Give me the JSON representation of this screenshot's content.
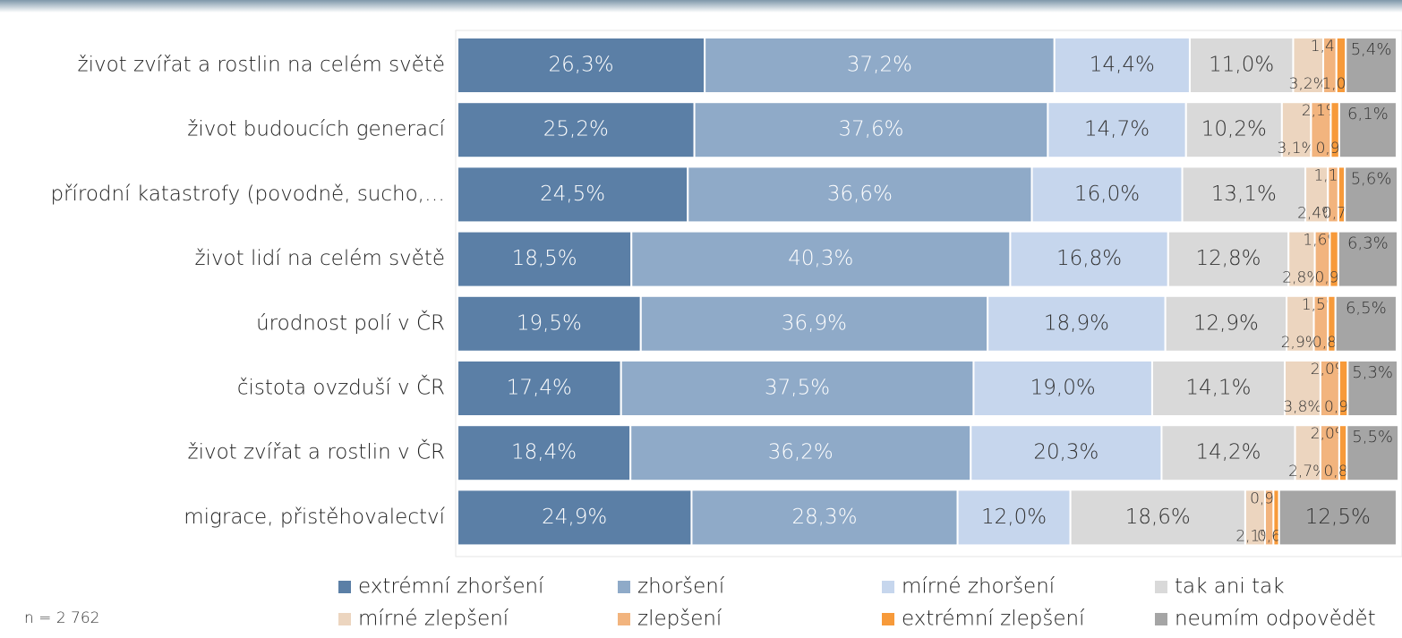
{
  "chart_data": {
    "type": "stacked-bar-horizontal",
    "note": "n = 2 762",
    "categories": [
      "život zvířat a rostlin na celém světě",
      "život budoucích generací",
      "přírodní katastrofy (povodně, sucho,…",
      "život lidí na celém světě",
      "úrodnost polí v ČR",
      "čistota ovzduší v ČR",
      "život zvířat a rostlin v ČR",
      "migrace, přistěhovalectví"
    ],
    "xlim": [
      0,
      100
    ],
    "series": [
      {
        "name": "extrémní zhoršení",
        "color": "#5b7fa6",
        "values": [
          26.3,
          25.2,
          24.5,
          18.5,
          19.5,
          17.4,
          18.4,
          24.9
        ],
        "value_labels": [
          "26,3%",
          "25,2%",
          "24,5%",
          "18,5%",
          "19,5%",
          "17,4%",
          "18,4%",
          "24,9%"
        ]
      },
      {
        "name": "zhoršení",
        "color": "#8faac8",
        "values": [
          37.2,
          37.6,
          36.6,
          40.3,
          36.9,
          37.5,
          36.2,
          28.3
        ],
        "value_labels": [
          "37,2%",
          "37,6%",
          "36,6%",
          "40,3%",
          "36,9%",
          "37,5%",
          "36,2%",
          "28,3%"
        ]
      },
      {
        "name": "mírné zhoršení",
        "color": "#c6d6ed",
        "values": [
          14.4,
          14.7,
          16.0,
          16.8,
          18.9,
          19.0,
          20.3,
          12.0
        ],
        "value_labels": [
          "14,4%",
          "14,7%",
          "16,0%",
          "16,8%",
          "18,9%",
          "19,0%",
          "20,3%",
          "12,0%"
        ]
      },
      {
        "name": "tak ani tak",
        "color": "#d9d9d9",
        "values": [
          11.0,
          10.2,
          13.1,
          12.8,
          12.9,
          14.1,
          14.2,
          18.6
        ],
        "value_labels": [
          "11,0%",
          "10,2%",
          "13,1%",
          "12,8%",
          "12,9%",
          "14,1%",
          "14,2%",
          "18,6%"
        ]
      },
      {
        "name": "mírné zlepšení",
        "color": "#ecd5bf",
        "values": [
          3.2,
          3.1,
          2.4,
          2.8,
          2.9,
          3.8,
          2.7,
          2.1
        ],
        "value_labels": [
          "3,2%",
          "3,1%",
          "2,4%",
          "2,8%",
          "2,9%",
          "3,8%",
          "2,7%",
          "2,1%"
        ]
      },
      {
        "name": "zlepšení",
        "color": "#f2b47e",
        "values": [
          1.4,
          2.1,
          1.1,
          1.6,
          1.5,
          2.0,
          2.0,
          0.9
        ],
        "value_labels": [
          "1,4%",
          "2,1%",
          "1,1%",
          "1,6%",
          "1,5%",
          "2,0%",
          "2,0%",
          "0,9%"
        ]
      },
      {
        "name": "extrémní zlepšení",
        "color": "#f79a3a",
        "values": [
          1.0,
          0.9,
          0.7,
          0.9,
          0.8,
          0.9,
          0.8,
          0.6
        ],
        "value_labels": [
          "1,0%",
          "0,9%",
          "0,7%",
          "0,9%",
          "0,8%",
          "0,9%",
          "0,8%",
          "0,6%"
        ]
      },
      {
        "name": "neumím odpovědět",
        "color": "#a5a5a5",
        "values": [
          5.4,
          6.1,
          5.6,
          6.3,
          6.5,
          5.3,
          5.5,
          12.5
        ],
        "value_labels": [
          "5,4%",
          "6,1%",
          "5,6%",
          "6,3%",
          "6,5%",
          "5,3%",
          "5,5%",
          "12,5%"
        ]
      }
    ]
  }
}
